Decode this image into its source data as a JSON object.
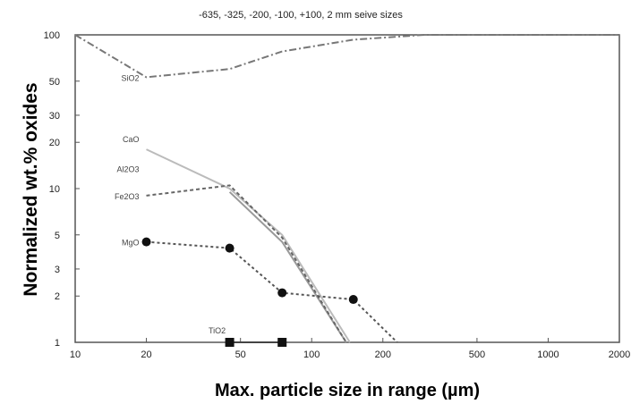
{
  "chart_data": {
    "type": "line",
    "subtitle": "-635, -325, -200, -100, +100, 2 mm seive sizes",
    "xlabel": "Max. particle size in range (µm)",
    "ylabel": "Normalized  wt.% oxides",
    "x_scale": "log",
    "y_scale": "log",
    "xlim": [
      10,
      2000
    ],
    "ylim": [
      1,
      100
    ],
    "x_ticks": [
      "10",
      "20",
      "50",
      "100",
      "200",
      "500",
      "1000",
      "2000"
    ],
    "y_ticks": [
      "1",
      "2",
      "3",
      "5",
      "10",
      "20",
      "30",
      "50",
      "100"
    ],
    "grid": false,
    "series": [
      {
        "name": "SiO2",
        "label": "SiO2",
        "color": "#777777",
        "dash": "8,3,2,3",
        "marker": "none",
        "x": [
          10,
          20,
          45,
          75,
          150,
          300,
          2000
        ],
        "y": [
          100,
          53,
          60,
          78,
          93,
          100,
          100
        ]
      },
      {
        "name": "CaO",
        "label": "CaO",
        "color": "#bbbbbb",
        "dash": "",
        "marker": "none",
        "x": [
          20,
          45,
          75,
          145
        ],
        "y": [
          18,
          10,
          5,
          1
        ]
      },
      {
        "name": "Al2O3",
        "label": "Al2O3",
        "color": "#999999",
        "dash": "",
        "marker": "none",
        "x": [
          45,
          75,
          140
        ],
        "y": [
          9.5,
          4.5,
          1
        ]
      },
      {
        "name": "Fe2O3",
        "label": "Fe2O3",
        "color": "#666666",
        "dash": "4,3",
        "marker": "none",
        "x": [
          20,
          45,
          75,
          140
        ],
        "y": [
          9,
          10.5,
          4.8,
          1
        ]
      },
      {
        "name": "MgO",
        "label": "MgO",
        "color": "#555555",
        "dash": "3,3",
        "marker": "circle",
        "x": [
          20,
          45,
          75,
          150,
          230
        ],
        "y": [
          4.5,
          4.1,
          2.1,
          1.9,
          1
        ]
      },
      {
        "name": "TiO2",
        "label": "TiO2",
        "color": "#444444",
        "dash": "",
        "marker": "square",
        "x": [
          45,
          75
        ],
        "y": [
          1,
          1
        ]
      }
    ]
  }
}
